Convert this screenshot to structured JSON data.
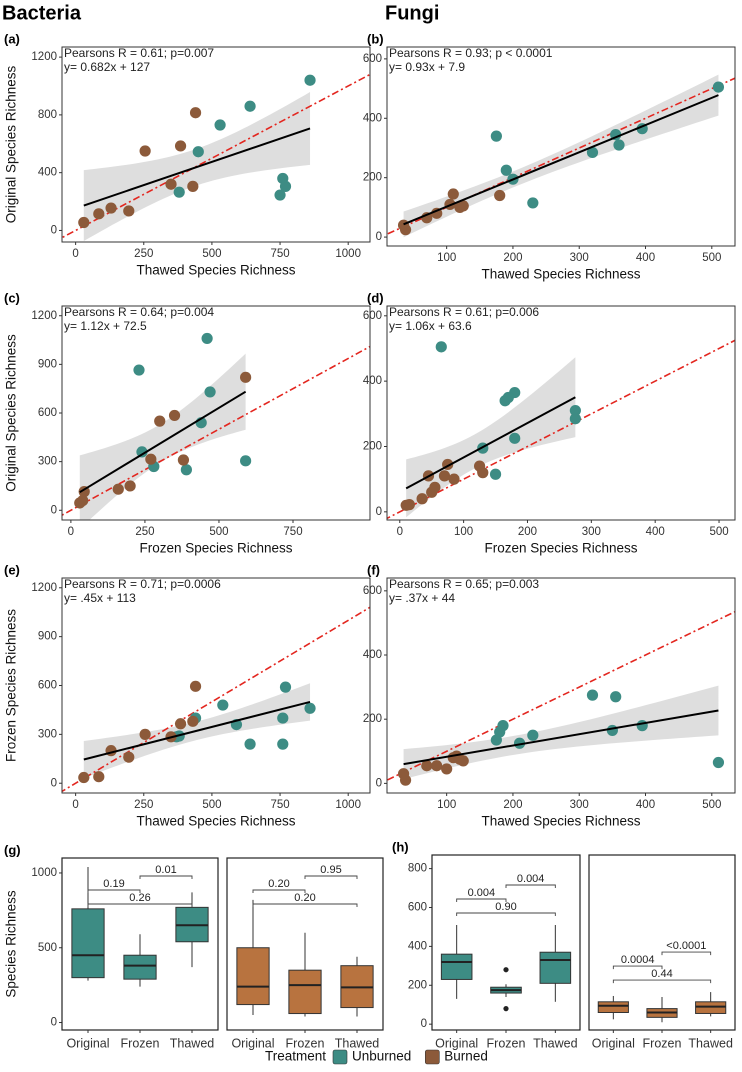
{
  "headers": [
    "Bacteria",
    "Fungi"
  ],
  "legend": {
    "title": "Treatment"
  },
  "chart_data": [
    {
      "type": "scatter",
      "label": "(a)",
      "xlabel": "Thawed Species Richness",
      "ylabel": "Original Species Richness",
      "annotations": [
        "Pearsons R = 0.61; p=0.007",
        "y= 0.682x + 127"
      ],
      "xlim": [
        -50,
        1080
      ],
      "ylim": [
        -80,
        1270
      ],
      "xticks": [
        0,
        250,
        500,
        750,
        1000
      ],
      "yticks": [
        0,
        400,
        800,
        1200
      ],
      "series": [
        {
          "name": "Unburned",
          "color": "#3d8c84",
          "x": [
            530,
            640,
            860,
            450,
            380,
            760,
            770,
            750
          ],
          "y": [
            730,
            860,
            1040,
            545,
            265,
            360,
            305,
            245
          ]
        },
        {
          "name": "Burned",
          "color": "#8c5a3a",
          "x": [
            30,
            85,
            130,
            195,
            255,
            350,
            385,
            440,
            430
          ],
          "y": [
            55,
            115,
            155,
            135,
            550,
            320,
            585,
            815,
            305
          ]
        }
      ]
    },
    {
      "type": "scatter",
      "label": "(b)",
      "xlabel": "Thawed Species Richness",
      "annotations": [
        "Pearsons R = 0.93; p < 0.0001",
        "y= 0.93x + 7.9"
      ],
      "xlim": [
        10,
        535
      ],
      "ylim": [
        -30,
        640
      ],
      "xticks": [
        100,
        200,
        300,
        400,
        500
      ],
      "yticks": [
        0,
        200,
        400,
        600
      ],
      "series": [
        {
          "name": "Unburned",
          "color": "#3d8c84",
          "x": [
            510,
            395,
            355,
            360,
            320,
            200,
            190,
            230,
            175
          ],
          "y": [
            505,
            365,
            345,
            310,
            285,
            195,
            225,
            115,
            340
          ]
        },
        {
          "name": "Burned",
          "color": "#8c5a3a",
          "x": [
            35,
            38,
            70,
            85,
            105,
            110,
            120,
            125,
            180
          ],
          "y": [
            40,
            25,
            65,
            80,
            110,
            145,
            100,
            105,
            140
          ]
        }
      ]
    },
    {
      "type": "scatter",
      "label": "(c)",
      "xlabel": "Frozen Species Richness",
      "ylabel": "Original Species Richness",
      "annotations": [
        "Pearsons R = 0.64; p=0.004",
        "y= 1.12x +  72.5"
      ],
      "xlim": [
        -30,
        1010
      ],
      "ylim": [
        -60,
        1260
      ],
      "xticks": [
        0,
        250,
        500,
        750
      ],
      "yticks": [
        0,
        300,
        600,
        900,
        1200
      ],
      "series": [
        {
          "name": "Unburned",
          "color": "#3d8c84",
          "x": [
            230,
            460,
            470,
            440,
            240,
            280,
            390,
            590
          ],
          "y": [
            865,
            1060,
            730,
            540,
            360,
            270,
            250,
            305
          ]
        },
        {
          "name": "Burned",
          "color": "#8c5a3a",
          "x": [
            30,
            45,
            40,
            160,
            200,
            270,
            300,
            350,
            380,
            590
          ],
          "y": [
            45,
            115,
            60,
            130,
            150,
            315,
            550,
            585,
            310,
            820
          ]
        }
      ]
    },
    {
      "type": "scatter",
      "label": "(d)",
      "xlabel": "Frozen Species Richness",
      "annotations": [
        "Pearsons R = 0.61; p=0.006",
        "y= 1.06x + 63.6"
      ],
      "xlim": [
        -20,
        525
      ],
      "ylim": [
        -25,
        630
      ],
      "xticks": [
        0,
        100,
        200,
        300,
        400,
        500
      ],
      "yticks": [
        0,
        200,
        400,
        600
      ],
      "series": [
        {
          "name": "Unburned",
          "color": "#3d8c84",
          "x": [
            65,
            180,
            165,
            170,
            275,
            275,
            180,
            130,
            150
          ],
          "y": [
            505,
            365,
            340,
            350,
            310,
            285,
            225,
            195,
            115
          ]
        },
        {
          "name": "Burned",
          "color": "#8c5a3a",
          "x": [
            10,
            15,
            35,
            45,
            50,
            55,
            70,
            75,
            85,
            125,
            130
          ],
          "y": [
            20,
            22,
            40,
            110,
            60,
            75,
            110,
            145,
            100,
            140,
            120
          ]
        }
      ]
    },
    {
      "type": "scatter",
      "label": "(e)",
      "xlabel": "Thawed Species Richness",
      "ylabel": "Frozen Species Richness",
      "annotations": [
        "Pearsons R = 0.71; p=0.0006",
        "y= .45x + 113"
      ],
      "xlim": [
        -50,
        1080
      ],
      "ylim": [
        -60,
        1260
      ],
      "xticks": [
        0,
        250,
        500,
        750,
        1000
      ],
      "yticks": [
        0,
        300,
        600,
        900,
        1200
      ],
      "series": [
        {
          "name": "Unburned",
          "color": "#3d8c84",
          "x": [
            540,
            590,
            640,
            760,
            770,
            760,
            860,
            440,
            380,
            370
          ],
          "y": [
            480,
            360,
            240,
            240,
            590,
            400,
            460,
            400,
            290,
            285
          ]
        },
        {
          "name": "Burned",
          "color": "#8c5a3a",
          "x": [
            30,
            85,
            130,
            195,
            255,
            350,
            385,
            430,
            440
          ],
          "y": [
            35,
            40,
            200,
            160,
            300,
            285,
            365,
            380,
            595
          ]
        }
      ]
    },
    {
      "type": "scatter",
      "label": "(f)",
      "xlabel": "Thawed Species Richness",
      "annotations": [
        "Pearsons R = 0.65; p=0.003",
        "y= .37x + 44"
      ],
      "xlim": [
        10,
        535
      ],
      "ylim": [
        -30,
        640
      ],
      "xticks": [
        100,
        200,
        300,
        400,
        500
      ],
      "yticks": [
        0,
        200,
        400,
        600
      ],
      "series": [
        {
          "name": "Unburned",
          "color": "#3d8c84",
          "x": [
            510,
            320,
            355,
            395,
            350,
            230,
            210,
            185,
            180,
            175
          ],
          "y": [
            65,
            275,
            270,
            180,
            165,
            150,
            125,
            180,
            160,
            135
          ]
        },
        {
          "name": "Burned",
          "color": "#8c5a3a",
          "x": [
            35,
            38,
            70,
            85,
            100,
            110,
            115,
            120,
            125
          ],
          "y": [
            30,
            10,
            55,
            55,
            45,
            80,
            85,
            75,
            70
          ]
        }
      ]
    },
    {
      "type": "box",
      "label": "(g)",
      "ylabel": "Species Richness",
      "ylim": [
        -50,
        1100
      ],
      "yticks": [
        0,
        500,
        1000
      ],
      "categories": [
        "Original",
        "Frozen",
        "Thawed"
      ],
      "facets": [
        {
          "color": "#3d8c84",
          "boxes": [
            {
              "min": 280,
              "q1": 300,
              "median": 450,
              "q3": 760,
              "max": 1040,
              "outliers": []
            },
            {
              "min": 240,
              "q1": 290,
              "median": 380,
              "q3": 450,
              "max": 590,
              "outliers": []
            },
            {
              "min": 370,
              "q1": 540,
              "median": 650,
              "q3": 770,
              "max": 870,
              "outliers": []
            }
          ],
          "comparisons": [
            {
              "pair": [
                "Frozen",
                "Thawed"
              ],
              "label": "0.01"
            },
            {
              "pair": [
                "Original",
                "Frozen"
              ],
              "label": "0.19"
            },
            {
              "pair": [
                "Original",
                "Thawed"
              ],
              "label": "0.26"
            }
          ]
        },
        {
          "color": "#b8733f",
          "boxes": [
            {
              "min": 50,
              "q1": 120,
              "median": 240,
              "q3": 500,
              "max": 820,
              "outliers": []
            },
            {
              "min": 40,
              "q1": 60,
              "median": 250,
              "q3": 350,
              "max": 600,
              "outliers": []
            },
            {
              "min": 40,
              "q1": 100,
              "median": 235,
              "q3": 380,
              "max": 440,
              "outliers": []
            }
          ],
          "comparisons": [
            {
              "pair": [
                "Frozen",
                "Thawed"
              ],
              "label": "0.95"
            },
            {
              "pair": [
                "Original",
                "Frozen"
              ],
              "label": "0.20"
            },
            {
              "pair": [
                "Original",
                "Thawed"
              ],
              "label": "0.20"
            }
          ]
        }
      ]
    },
    {
      "type": "box",
      "label": "(h)",
      "ylim": [
        -30,
        870
      ],
      "yticks": [
        0,
        200,
        400,
        600,
        800
      ],
      "categories": [
        "Original",
        "Frozen",
        "Thawed"
      ],
      "facets": [
        {
          "color": "#3d8c84",
          "boxes": [
            {
              "min": 130,
              "q1": 230,
              "median": 320,
              "q3": 360,
              "max": 510,
              "outliers": []
            },
            {
              "min": 140,
              "q1": 160,
              "median": 175,
              "q3": 190,
              "max": 205,
              "outliers": [
                280,
                80
              ]
            },
            {
              "min": 115,
              "q1": 210,
              "median": 330,
              "q3": 370,
              "max": 510,
              "outliers": []
            }
          ],
          "comparisons": [
            {
              "pair": [
                "Frozen",
                "Thawed"
              ],
              "label": "0.004"
            },
            {
              "pair": [
                "Original",
                "Frozen"
              ],
              "label": "0.004"
            },
            {
              "pair": [
                "Original",
                "Thawed"
              ],
              "label": "0.90"
            }
          ]
        },
        {
          "color": "#b8733f",
          "boxes": [
            {
              "min": 25,
              "q1": 60,
              "median": 95,
              "q3": 115,
              "max": 145,
              "outliers": []
            },
            {
              "min": 10,
              "q1": 35,
              "median": 60,
              "q3": 80,
              "max": 140,
              "outliers": []
            },
            {
              "min": 40,
              "q1": 55,
              "median": 90,
              "q3": 115,
              "max": 165,
              "outliers": []
            }
          ],
          "comparisons": [
            {
              "pair": [
                "Frozen",
                "Thawed"
              ],
              "label": "<0.0001"
            },
            {
              "pair": [
                "Original",
                "Frozen"
              ],
              "label": "0.0004"
            },
            {
              "pair": [
                "Original",
                "Thawed"
              ],
              "label": "0.44"
            }
          ]
        }
      ]
    }
  ]
}
